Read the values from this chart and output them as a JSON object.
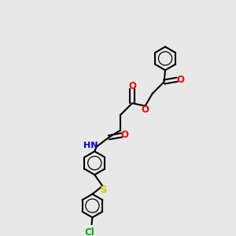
{
  "bg_color": "#e8e8e8",
  "bond_color": "#000000",
  "O_color": "#ff0000",
  "N_color": "#0000cc",
  "S_color": "#cccc00",
  "Cl_color": "#00aa00",
  "line_width": 1.5,
  "font_size": 8.5
}
